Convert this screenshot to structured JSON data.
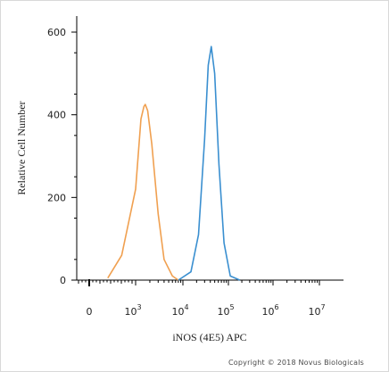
{
  "chart_data": {
    "type": "line",
    "xlabel": "iNOS (4E5) APC",
    "ylabel": "Relative Cell Number",
    "x_scale": "biexponential",
    "x_ticks": [
      {
        "base": "0",
        "exp": ""
      },
      {
        "base": "10",
        "exp": "3"
      },
      {
        "base": "10",
        "exp": "4"
      },
      {
        "base": "10",
        "exp": "5"
      },
      {
        "base": "10",
        "exp": "6"
      },
      {
        "base": "10",
        "exp": "7"
      }
    ],
    "ylim": [
      0,
      600
    ],
    "y_ticks": [
      "0",
      "200",
      "400",
      "600"
    ],
    "grid": false,
    "series": [
      {
        "color": "#f0a050",
        "peak_x": 1600,
        "peak_y": 425,
        "x": [
          400,
          700,
          1000,
          1300,
          1500,
          1600,
          1800,
          2200,
          3000,
          4000,
          6000,
          8000
        ],
        "y": [
          5,
          60,
          220,
          390,
          420,
          425,
          410,
          330,
          160,
          50,
          10,
          0
        ]
      },
      {
        "color": "#3a8fd0",
        "peak_x": 42000,
        "peak_y": 565,
        "x": [
          8000,
          15000,
          22000,
          30000,
          36000,
          42000,
          50000,
          62000,
          80000,
          110000,
          180000
        ],
        "y": [
          0,
          20,
          110,
          340,
          520,
          565,
          500,
          280,
          90,
          10,
          0
        ]
      }
    ]
  },
  "copyright": "Copyright © 2018 Novus Biologicals"
}
